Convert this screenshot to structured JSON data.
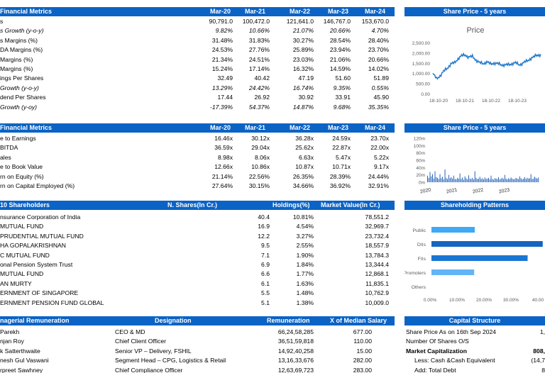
{
  "financial_metrics": {
    "title": "Financial Metrics",
    "columns": [
      "Mar-20",
      "Mar-21",
      "Mar-22",
      "Mar-23",
      "Mar-24"
    ],
    "rows": [
      {
        "label": "s",
        "italic": false,
        "values": [
          "90,791.0",
          "100,472.0",
          "121,641.0",
          "146,767.0",
          "153,670.0"
        ]
      },
      {
        "label": "s Growth (y-o-y)",
        "italic": true,
        "values": [
          "9.82%",
          "10.66%",
          "21.07%",
          "20.66%",
          "4.70%"
        ]
      },
      {
        "label": "s Margins (%)",
        "italic": false,
        "values": [
          "31.48%",
          "31.83%",
          "30.27%",
          "28.54%",
          "28.40%"
        ]
      },
      {
        "label": "DA Margins (%)",
        "italic": false,
        "values": [
          "24.53%",
          "27.76%",
          "25.89%",
          "23.94%",
          "23.70%"
        ]
      },
      {
        "label": " Margins (%)",
        "italic": false,
        "values": [
          "21.34%",
          "24.51%",
          "23.03%",
          "21.06%",
          "20.66%"
        ]
      },
      {
        "label": "Margins (%)",
        "italic": false,
        "values": [
          "15.24%",
          "17.14%",
          "16.32%",
          "14.59%",
          "14.02%"
        ]
      },
      {
        "label": "ings Per Shares",
        "italic": false,
        "values": [
          "32.49",
          "40.42",
          "47.19",
          "51.60",
          "51.89"
        ]
      },
      {
        "label": "Growth (y-o-y)",
        "italic": true,
        "values": [
          "13.29%",
          "24.42%",
          "16.74%",
          "9.35%",
          "0.55%"
        ]
      },
      {
        "label": "dend Per Shares",
        "italic": false,
        "values": [
          "17.44",
          "26.92",
          "30.92",
          "33.91",
          "45.90"
        ]
      },
      {
        "label": "Growth (y-oy)",
        "italic": true,
        "values": [
          "-17.39%",
          "54.37%",
          "14.87%",
          "9.68%",
          "35.35%"
        ]
      }
    ]
  },
  "financial_ratios": {
    "title": "Financial Metrics",
    "columns": [
      "Mar-20",
      "Mar-21",
      "Mar-22",
      "Mar-23",
      "Mar-24"
    ],
    "rows": [
      {
        "label": "e to Earnings",
        "values": [
          "16.46x",
          "30.12x",
          "36.28x",
          "24.59x",
          "23.70x"
        ]
      },
      {
        "label": "BITDA",
        "values": [
          "36.59x",
          "29.04x",
          "25.62x",
          "22.87x",
          "22.00x"
        ]
      },
      {
        "label": "ales",
        "values": [
          "8.98x",
          "8.06x",
          "6.63x",
          "5.47x",
          "5.22x"
        ]
      },
      {
        "label": "e to Book Value",
        "values": [
          "12.66x",
          "10.86x",
          "10.87x",
          "10.71x",
          "9.17x"
        ]
      },
      {
        "label": "rn on Equity (%)",
        "values": [
          "21.14%",
          "22.56%",
          "26.35%",
          "28.39%",
          "24.44%"
        ]
      },
      {
        "label": "rn on Capital Employed (%)",
        "values": [
          "27.64%",
          "30.15%",
          "34.66%",
          "36.92%",
          "32.91%"
        ]
      }
    ]
  },
  "shareholders": {
    "title": "10 Shareholders",
    "col_shares": "N. Shares(In Cr.)",
    "col_holdings": "Holdings(%)",
    "col_value": "Market Value(In Cr.)",
    "rows": [
      {
        "name": "nsurance Corporation of India",
        "shares": "40.4",
        "holdings": "10.81%",
        "value": "78,551.2"
      },
      {
        "name": "MUTUAL FUND",
        "shares": "16.9",
        "holdings": "4.54%",
        "value": "32,969.7"
      },
      {
        "name": " PRUDENTIAL MUTUAL FUND",
        "shares": "12.2",
        "holdings": "3.27%",
        "value": "23,732.4"
      },
      {
        "name": "HA GOPALAKRISHNAN",
        "shares": "9.5",
        "holdings": "2.55%",
        "value": "18,557.9"
      },
      {
        "name": "C MUTUAL FUND",
        "shares": "7.1",
        "holdings": "1.90%",
        "value": "13,784.3"
      },
      {
        "name": "onal Pension System Trust",
        "shares": "6.9",
        "holdings": "1.84%",
        "value": "13,344.4"
      },
      {
        "name": "MUTUAL FUND",
        "shares": "6.6",
        "holdings": "1.77%",
        "value": "12,868.1"
      },
      {
        "name": "AN MURTY",
        "shares": "6.1",
        "holdings": "1.63%",
        "value": "11,835.1"
      },
      {
        "name": "ERNMENT OF SINGAPORE",
        "shares": "5.5",
        "holdings": "1.48%",
        "value": "10,762.9"
      },
      {
        "name": "ERNMENT PENSION FUND GLOBAL",
        "shares": "5.1",
        "holdings": "1.38%",
        "value": "10,009.0"
      }
    ]
  },
  "remuneration": {
    "title": "nagerial Remuneration",
    "col_designation": "Designation",
    "col_remuneration": "Remuneration",
    "col_median": "X of Median Salary",
    "rows": [
      {
        "name": "Parekh",
        "designation": "CEO & MD",
        "remuneration": "66,24,58,285",
        "median": "677.00"
      },
      {
        "name": "njan Roy",
        "designation": "Chief Client Officer",
        "remuneration": "36,51,59,818",
        "median": "110.00"
      },
      {
        "name": "k Satterthwaite",
        "designation": "Senior VP – Delivery, FSHIL",
        "remuneration": "14,92,40,258",
        "median": "15.00"
      },
      {
        "name": "nesh Gul Vaswani",
        "designation": "Segment Head – CPG, Logistics & Retail",
        "remuneration": "13,16,33,676",
        "median": "282.00"
      },
      {
        "name": "rpreet Sawhney",
        "designation": "Chief Compliance Officer",
        "remuneration": "12,63,69,723",
        "median": "283.00"
      }
    ]
  },
  "capital_structure": {
    "title": "Capital Structure",
    "rows": [
      {
        "label": "Share Price As on 16th Sep 2024",
        "value": "1,",
        "bold": false,
        "indent": false
      },
      {
        "label": "Number Of Shares O/S",
        "value": "",
        "bold": false,
        "indent": false
      },
      {
        "label": "Market Capitalization",
        "value": "808,",
        "bold": true,
        "indent": false
      },
      {
        "label": "Less: Cash &Cash Equivalent",
        "value": "(14,7",
        "bold": false,
        "indent": true
      },
      {
        "label": "Add: Total Debt",
        "value": "8",
        "bold": false,
        "indent": true
      }
    ]
  },
  "price_chart": {
    "title": "Share Price - 5 years",
    "chart_data": {
      "type": "line",
      "title": "Price",
      "series": [
        {
          "values": [
            1000,
            720,
            880,
            1080,
            1250,
            1450,
            1500,
            1720,
            1850,
            1900,
            1780,
            1820,
            1650,
            1500,
            1480,
            1550,
            1450,
            1500,
            1460,
            1420,
            1400,
            1410,
            1470,
            1500,
            1420,
            1480,
            1580,
            1700,
            1780,
            1900,
            1890
          ]
        }
      ],
      "x_ticks": [
        "18-10-20",
        "18-10-21",
        "18-10-22",
        "18-10-23"
      ],
      "y_ticks": [
        "0.00",
        "500.00",
        "1,000.00",
        "1,500.00",
        "2,000.00",
        "2,500.00"
      ],
      "ylim": [
        0,
        2500
      ]
    }
  },
  "volume_chart": {
    "title": "Share Price - 5 years",
    "chart_data": {
      "type": "bar",
      "y_ticks": [
        "0m",
        "20m",
        "40m",
        "60m",
        "80m",
        "100m",
        "120m"
      ],
      "x_ticks": [
        "2020",
        "2021",
        "2022",
        "2023"
      ],
      "ylim": [
        0,
        120
      ],
      "values": [
        18,
        12,
        28,
        16,
        22,
        10,
        30,
        14,
        12,
        9,
        22,
        11,
        15,
        8,
        35,
        12,
        9,
        20,
        11,
        14,
        10,
        18,
        9,
        8,
        12,
        10,
        24,
        9,
        13,
        7,
        16,
        11,
        8,
        19,
        10,
        9,
        12,
        8,
        30,
        12,
        9,
        10,
        15,
        9,
        11,
        8,
        13,
        9,
        10,
        12,
        8,
        18,
        9,
        7,
        11,
        10,
        9,
        14,
        8,
        10,
        12,
        9,
        20,
        10,
        8,
        11,
        9,
        13,
        10,
        8,
        9,
        12,
        10,
        9,
        16,
        11,
        8,
        10,
        14,
        9,
        12,
        10,
        11,
        22,
        9,
        10,
        15,
        12,
        10,
        13
      ]
    }
  },
  "patterns_chart": {
    "title": "Shareholding Patterns",
    "chart_data": {
      "type": "bar",
      "categories": [
        "Public",
        "DIIs",
        "FIIs",
        "Promoters",
        "Others"
      ],
      "values": [
        14.9,
        38.3,
        33.1,
        14.7,
        0.0
      ],
      "x_ticks": [
        "0.00%",
        "10.00%",
        "20.00%",
        "30.00%",
        "40.00"
      ],
      "xlim": [
        0,
        40
      ]
    }
  },
  "colors": {
    "header_bg": "#0b63c5",
    "header_text": "#ffffff",
    "line": "#1f77c8",
    "volume": "#1f5fb8",
    "pattern_public": "#3fa9f5",
    "pattern_dii": "#1565c0",
    "pattern_fii": "#1976d2",
    "pattern_promoters": "#64b5f6"
  }
}
